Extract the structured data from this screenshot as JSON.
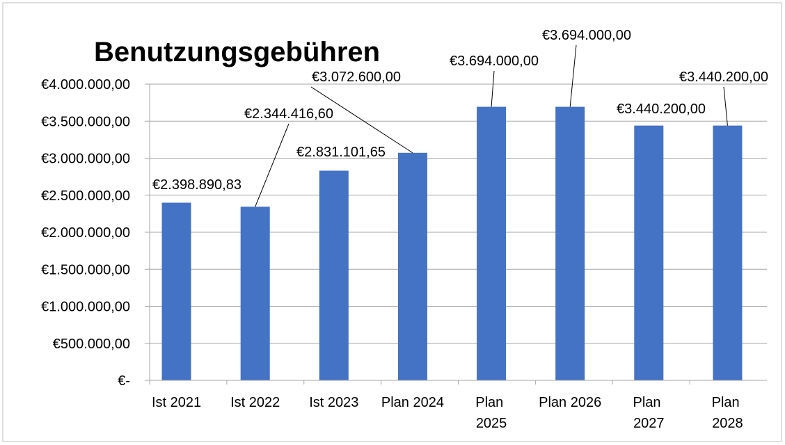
{
  "chart_data": {
    "type": "bar",
    "title": "Benutzungsgebühren",
    "categories": [
      "Ist 2021",
      "Ist 2022",
      "Ist 2023",
      "Plan 2024",
      "Plan 2025",
      "Plan 2026",
      "Plan 2027",
      "Plan 2028"
    ],
    "values": [
      2398890.83,
      2344416.6,
      2831101.65,
      3072600.0,
      3694000.0,
      3694000.0,
      3440200.0,
      3440200.0
    ],
    "value_labels": [
      "€2.398.890,83",
      "€2.344.416,60",
      "€2.831.101,65",
      "€3.072.600,00",
      "€3.694.000,00",
      "€3.694.000,00",
      "€3.440.200,00",
      "€3.440.200,00"
    ],
    "color": "#4472c4",
    "ylim": [
      0,
      4000000
    ],
    "yticks": [
      {
        "value": 0,
        "label": "€-"
      },
      {
        "value": 500000,
        "label": "€500.000,00"
      },
      {
        "value": 1000000,
        "label": "€1.000.000,00"
      },
      {
        "value": 1500000,
        "label": "€1.500.000,00"
      },
      {
        "value": 2000000,
        "label": "€2.000.000,00"
      },
      {
        "value": 2500000,
        "label": "€2.500.000,00"
      },
      {
        "value": 3000000,
        "label": "€3.000.000,00"
      },
      {
        "value": 3500000,
        "label": "€3.500.000,00"
      },
      {
        "value": 4000000,
        "label": "€4.000.000,00"
      }
    ],
    "grid": true
  }
}
